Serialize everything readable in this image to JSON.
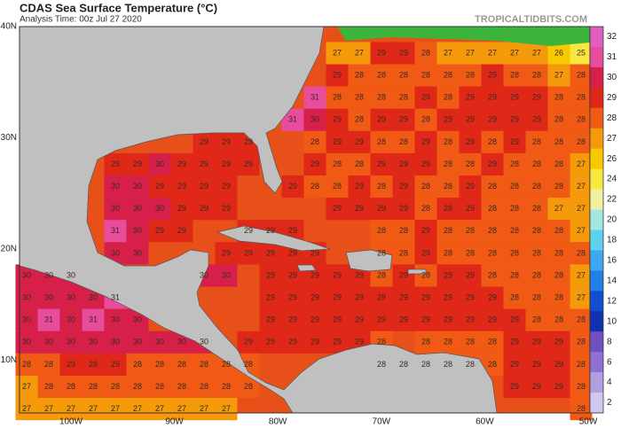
{
  "header": {
    "title": "CDAS Sea Surface Temperature (°C)",
    "subtitle": "Analysis Time: 00z Jul 27 2020",
    "watermark": "TROPICALTIDBITS.COM"
  },
  "map": {
    "lat_labels": [
      "40N",
      "30N",
      "20N",
      "10N"
    ],
    "lon_labels": [
      "100W",
      "90W",
      "80W",
      "70W",
      "60W",
      "50W"
    ],
    "rows": [
      [
        null,
        null,
        null,
        null,
        null,
        null,
        null,
        null,
        null,
        null,
        null,
        null,
        null,
        null,
        27,
        27,
        29,
        29,
        28,
        27,
        27,
        27,
        27,
        27,
        26,
        25
      ],
      [
        null,
        null,
        null,
        null,
        null,
        null,
        null,
        null,
        null,
        null,
        null,
        null,
        null,
        null,
        29,
        28,
        28,
        28,
        28,
        28,
        28,
        29,
        28,
        28,
        27,
        28
      ],
      [
        null,
        null,
        null,
        null,
        null,
        null,
        null,
        null,
        null,
        null,
        null,
        null,
        null,
        31,
        28,
        28,
        28,
        28,
        29,
        28,
        29,
        29,
        29,
        29,
        28,
        28
      ],
      [
        null,
        null,
        null,
        null,
        null,
        null,
        null,
        null,
        null,
        null,
        null,
        null,
        31,
        30,
        29,
        28,
        29,
        29,
        28,
        29,
        29,
        29,
        29,
        29,
        28,
        28
      ],
      [
        null,
        null,
        null,
        null,
        null,
        null,
        null,
        null,
        29,
        29,
        29,
        null,
        null,
        28,
        29,
        29,
        28,
        28,
        29,
        28,
        29,
        28,
        29,
        28,
        28,
        28
      ],
      [
        null,
        null,
        null,
        null,
        29,
        29,
        30,
        29,
        29,
        29,
        29,
        null,
        null,
        29,
        28,
        28,
        29,
        29,
        29,
        28,
        28,
        29,
        28,
        28,
        28,
        27
      ],
      [
        null,
        null,
        null,
        null,
        30,
        30,
        29,
        29,
        29,
        29,
        null,
        null,
        29,
        28,
        28,
        29,
        28,
        29,
        28,
        28,
        29,
        28,
        28,
        28,
        28,
        27
      ],
      [
        null,
        null,
        null,
        null,
        30,
        30,
        30,
        29,
        29,
        29,
        null,
        null,
        null,
        null,
        29,
        29,
        29,
        29,
        28,
        29,
        29,
        28,
        28,
        28,
        27,
        27
      ],
      [
        null,
        null,
        null,
        null,
        31,
        30,
        29,
        29,
        null,
        null,
        29,
        29,
        29,
        null,
        null,
        null,
        28,
        28,
        29,
        28,
        28,
        28,
        28,
        28,
        28,
        27
      ],
      [
        null,
        null,
        null,
        null,
        30,
        30,
        null,
        null,
        null,
        29,
        29,
        29,
        29,
        29,
        null,
        null,
        28,
        28,
        29,
        28,
        28,
        28,
        28,
        28,
        28,
        28
      ],
      [
        30,
        30,
        30,
        null,
        null,
        null,
        null,
        null,
        30,
        30,
        null,
        29,
        29,
        29,
        29,
        29,
        28,
        29,
        28,
        29,
        29,
        28,
        28,
        28,
        28,
        27
      ],
      [
        30,
        30,
        30,
        30,
        31,
        null,
        null,
        null,
        null,
        null,
        null,
        29,
        29,
        29,
        29,
        29,
        29,
        29,
        29,
        29,
        29,
        29,
        28,
        28,
        28,
        27
      ],
      [
        30,
        31,
        30,
        31,
        30,
        30,
        null,
        null,
        null,
        null,
        null,
        29,
        29,
        29,
        29,
        29,
        29,
        29,
        29,
        29,
        29,
        29,
        29,
        28,
        28,
        28
      ],
      [
        30,
        30,
        30,
        30,
        30,
        30,
        30,
        30,
        30,
        null,
        29,
        29,
        29,
        29,
        29,
        29,
        28,
        null,
        28,
        28,
        28,
        28,
        29,
        29,
        29,
        28
      ],
      [
        28,
        28,
        29,
        29,
        29,
        28,
        28,
        28,
        28,
        28,
        28,
        null,
        null,
        null,
        null,
        null,
        28,
        28,
        28,
        28,
        28,
        28,
        29,
        29,
        29,
        28
      ],
      [
        27,
        28,
        28,
        28,
        28,
        28,
        28,
        28,
        28,
        28,
        28,
        null,
        null,
        null,
        null,
        null,
        null,
        null,
        null,
        null,
        null,
        null,
        29,
        29,
        29,
        28
      ],
      [
        27,
        27,
        27,
        27,
        27,
        27,
        27,
        27,
        27,
        27,
        null,
        null,
        null,
        null,
        null,
        null,
        null,
        null,
        null,
        null,
        null,
        null,
        null,
        null,
        null,
        28
      ]
    ]
  },
  "colorbar": {
    "ticks": [
      32,
      31,
      30,
      29,
      28,
      27,
      26,
      24,
      22,
      20,
      18,
      16,
      14,
      12,
      10,
      8,
      6,
      4,
      2
    ],
    "colors": [
      "#e060c0",
      "#e84c9c",
      "#d6204a",
      "#e02818",
      "#f05a14",
      "#f59a0a",
      "#f8c800",
      "#f8e840",
      "#f0f0a0",
      "#a0e8e0",
      "#60d0f0",
      "#40a8f0",
      "#2080e8",
      "#1050d0",
      "#1030b0",
      "#7050c0",
      "#9070d0",
      "#b0a0e0",
      "#d0c8f0"
    ]
  }
}
